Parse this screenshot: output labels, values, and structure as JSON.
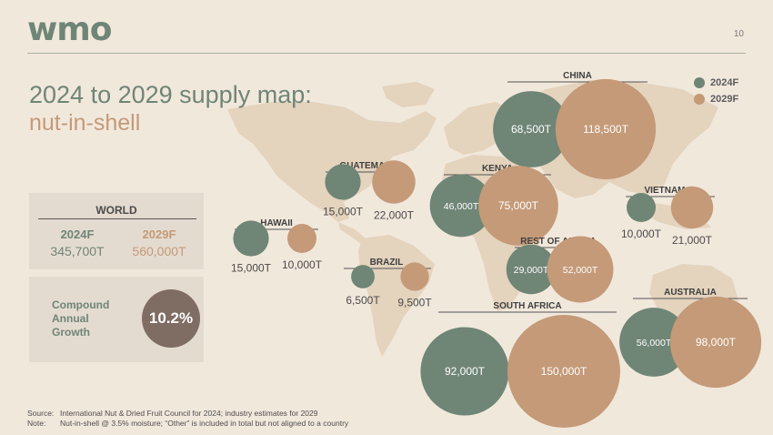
{
  "logo": "wmo",
  "page_number": "10",
  "title": "2024 to 2029 supply map:",
  "subtitle": "nut-in-shell",
  "legend": [
    {
      "label": "2024F",
      "color": "#6f8576"
    },
    {
      "label": "2029F",
      "color": "#c49a78"
    }
  ],
  "world": {
    "title": "WORLD",
    "col_2024": {
      "header": "2024F",
      "value": "345,700T"
    },
    "col_2029": {
      "header": "2029F",
      "value": "560,000T"
    }
  },
  "cagr": {
    "label": "Compound Annual Growth",
    "value": "10.2%"
  },
  "footnotes": {
    "source_key": "Source:",
    "source_text": "International Nut & Dried Fruit Council for 2024; industry estimates for 2029",
    "note_key": "Note:",
    "note_text": "Nut-in-shell @ 3.5% moisture; “Other” is included in total but not aligned to a country"
  },
  "colors": {
    "f2024": "#6f8576",
    "f2029": "#c49a78",
    "map": "#e4d3bd"
  },
  "chart_data": {
    "type": "bubble-map",
    "unit": "T",
    "series": [
      "2024F",
      "2029F"
    ],
    "regions": [
      {
        "name": "CHINA",
        "v2024": 68500,
        "v2029": 118500,
        "label2024": "68,500T",
        "label2029": "118,500T"
      },
      {
        "name": "GUATEMALA",
        "v2024": 15000,
        "v2029": 22000,
        "label2024": "15,000T",
        "label2029": "22,000T"
      },
      {
        "name": "KENYA",
        "v2024": 46000,
        "v2029": 75000,
        "label2024": "46,000T",
        "label2029": "75,000T"
      },
      {
        "name": "VIETNAM",
        "v2024": 10000,
        "v2029": 21000,
        "label2024": "10,000T",
        "label2029": "21,000T"
      },
      {
        "name": "HAWAII",
        "v2024": 15000,
        "v2029": 10000,
        "label2024": "15,000T",
        "label2029": "10,000T"
      },
      {
        "name": "REST OF AFRICA",
        "v2024": 29000,
        "v2029": 52000,
        "label2024": "29,000T",
        "label2029": "52,000T"
      },
      {
        "name": "BRAZIL",
        "v2024": 6500,
        "v2029": 9500,
        "label2024": "6,500T",
        "label2029": "9,500T"
      },
      {
        "name": "SOUTH AFRICA",
        "v2024": 92000,
        "v2029": 150000,
        "label2024": "92,000T",
        "label2029": "150,000T"
      },
      {
        "name": "AUSTRALIA",
        "v2024": 56000,
        "v2029": 98000,
        "label2024": "56,000T",
        "label2029": "98,000T"
      }
    ]
  }
}
